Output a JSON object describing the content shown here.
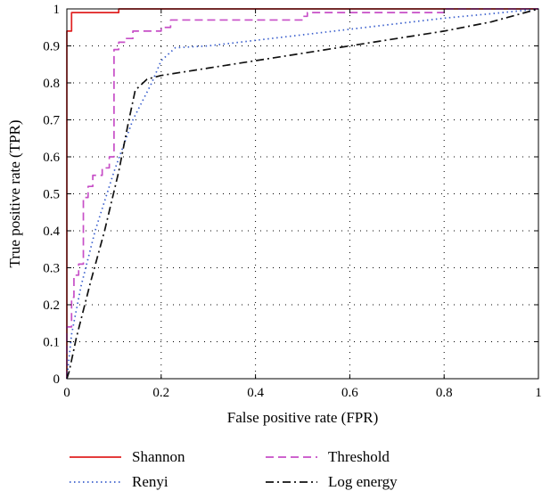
{
  "chart_data": {
    "type": "line",
    "xlabel": "False positive rate (FPR)",
    "ylabel": "True positive rate (TPR)",
    "xlim": [
      0,
      1
    ],
    "ylim": [
      0,
      1
    ],
    "x_ticks": [
      "0",
      "0.2",
      "0.4",
      "0.6",
      "0.8",
      "1"
    ],
    "y_ticks": [
      "0",
      "0.1",
      "0.2",
      "0.3",
      "0.4",
      "0.5",
      "0.6",
      "0.7",
      "0.8",
      "0.9",
      "1"
    ],
    "grid": true,
    "legend_position": "bottom, outside plot",
    "series": [
      {
        "name": "Shannon",
        "color": "#e02020",
        "line_style": "solid",
        "points": [
          [
            0,
            0
          ],
          [
            0,
            0.94
          ],
          [
            0.01,
            0.94
          ],
          [
            0.01,
            0.99
          ],
          [
            0.11,
            0.99
          ],
          [
            0.11,
            1.0
          ],
          [
            1.0,
            1.0
          ]
        ]
      },
      {
        "name": "Threshold",
        "color": "#c74fc7",
        "line_style": "dashed",
        "points": [
          [
            0,
            0
          ],
          [
            0,
            0.14
          ],
          [
            0.01,
            0.14
          ],
          [
            0.01,
            0.22
          ],
          [
            0.015,
            0.22
          ],
          [
            0.015,
            0.28
          ],
          [
            0.025,
            0.28
          ],
          [
            0.025,
            0.31
          ],
          [
            0.035,
            0.31
          ],
          [
            0.035,
            0.49
          ],
          [
            0.045,
            0.49
          ],
          [
            0.045,
            0.52
          ],
          [
            0.055,
            0.52
          ],
          [
            0.055,
            0.55
          ],
          [
            0.075,
            0.55
          ],
          [
            0.075,
            0.57
          ],
          [
            0.09,
            0.57
          ],
          [
            0.09,
            0.6
          ],
          [
            0.1,
            0.6
          ],
          [
            0.1,
            0.89
          ],
          [
            0.11,
            0.89
          ],
          [
            0.11,
            0.91
          ],
          [
            0.125,
            0.91
          ],
          [
            0.125,
            0.92
          ],
          [
            0.14,
            0.92
          ],
          [
            0.14,
            0.94
          ],
          [
            0.2,
            0.94
          ],
          [
            0.2,
            0.95
          ],
          [
            0.22,
            0.95
          ],
          [
            0.22,
            0.97
          ],
          [
            0.5,
            0.97
          ],
          [
            0.5,
            0.98
          ],
          [
            0.51,
            0.98
          ],
          [
            0.51,
            0.99
          ],
          [
            0.8,
            0.99
          ],
          [
            0.8,
            1.0
          ],
          [
            1.0,
            1.0
          ]
        ]
      },
      {
        "name": "Renyi",
        "color": "#3a5fcd",
        "line_style": "dotted",
        "points": [
          [
            0,
            0
          ],
          [
            0.01,
            0.12
          ],
          [
            0.03,
            0.25
          ],
          [
            0.06,
            0.4
          ],
          [
            0.1,
            0.56
          ],
          [
            0.14,
            0.7
          ],
          [
            0.18,
            0.8
          ],
          [
            0.2,
            0.86
          ],
          [
            0.23,
            0.895
          ],
          [
            0.3,
            0.9
          ],
          [
            0.4,
            0.915
          ],
          [
            0.5,
            0.93
          ],
          [
            0.6,
            0.945
          ],
          [
            0.7,
            0.96
          ],
          [
            0.8,
            0.975
          ],
          [
            0.9,
            0.987
          ],
          [
            1.0,
            1.0
          ]
        ]
      },
      {
        "name": "Log energy",
        "color": "#111111",
        "line_style": "dashdot",
        "points": [
          [
            0,
            0
          ],
          [
            0.005,
            0.02
          ],
          [
            0.02,
            0.11
          ],
          [
            0.05,
            0.26
          ],
          [
            0.08,
            0.4
          ],
          [
            0.11,
            0.56
          ],
          [
            0.13,
            0.69
          ],
          [
            0.145,
            0.78
          ],
          [
            0.17,
            0.81
          ],
          [
            0.2,
            0.82
          ],
          [
            0.3,
            0.84
          ],
          [
            0.4,
            0.86
          ],
          [
            0.5,
            0.88
          ],
          [
            0.6,
            0.9
          ],
          [
            0.7,
            0.92
          ],
          [
            0.8,
            0.94
          ],
          [
            0.9,
            0.965
          ],
          [
            1.0,
            1.0
          ]
        ]
      }
    ]
  }
}
